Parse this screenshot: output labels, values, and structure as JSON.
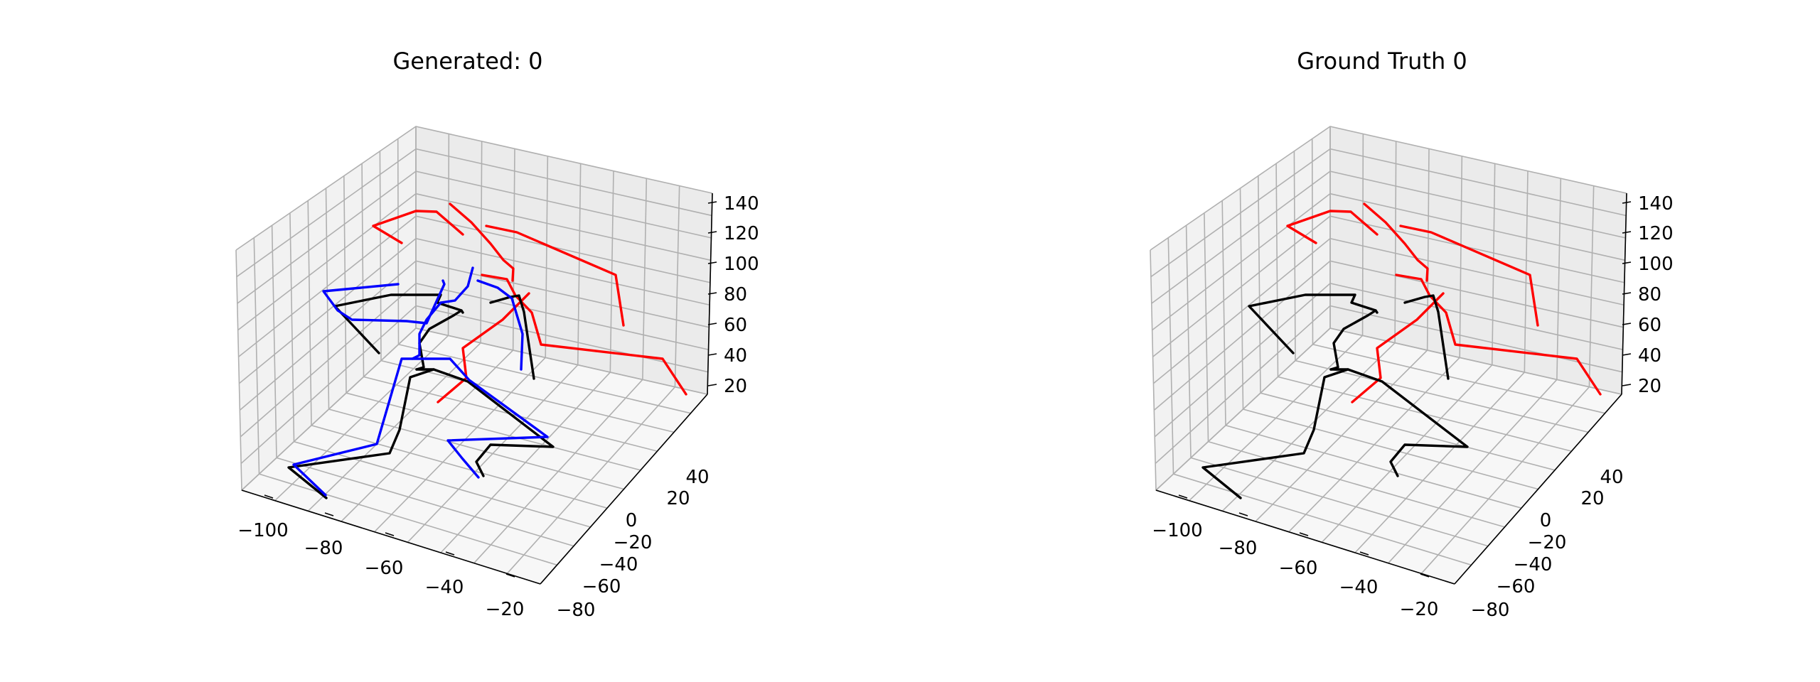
{
  "colors": {
    "red": "#ff0000",
    "black": "#000000",
    "blue": "#0000ff"
  },
  "chart_data": [
    {
      "type": "line3d",
      "title": "Generated: 0",
      "xticks": [
        "−100",
        "−80",
        "−60",
        "−40",
        "−20"
      ],
      "yticks": [
        "−80",
        "−60",
        "−40",
        "−20",
        "0",
        "20",
        "40"
      ],
      "zticks": [
        "20",
        "40",
        "60",
        "80",
        "100",
        "120",
        "140"
      ],
      "grid": true,
      "series": [
        {
          "color": "red",
          "segments": [
            {
              "points": [
                [
                  565,
                  342
                ],
                [
                  525,
                  318
                ],
                [
                  585,
                  297
                ],
                [
                  614,
                  298
                ],
                [
                  651,
                  330
                ]
              ]
            },
            {
              "points": [
                [
                  633,
                  287
                ],
                [
                  663,
                  313
                ],
                [
                  690,
                  343
                ],
                [
                  708,
                  366
                ],
                [
                  722,
                  378
                ],
                [
                  721,
                  395
                ]
              ]
            },
            {
              "points": [
                [
                  684,
                  318
                ],
                [
                  727,
                  327
                ],
                [
                  866,
                  387
                ],
                [
                  877,
                  458
                ]
              ]
            },
            {
              "points": [
                [
                  678,
                  387
                ],
                [
                  713,
                  393
                ],
                [
                  725,
                  416
                ],
                [
                  748,
                  440
                ],
                [
                  761,
                  485
                ],
                [
                  932,
                  505
                ],
                [
                  965,
                  555
                ]
              ]
            },
            {
              "points": [
                [
                  744,
                  413
                ],
                [
                  707,
                  450
                ],
                [
                  651,
                  490
                ],
                [
                  656,
                  532
                ],
                [
                  616,
                  566
                ]
              ]
            }
          ]
        },
        {
          "color": "black",
          "segments": [
            {
              "points": [
                [
                  533,
                  497
                ],
                [
                  471,
                  431
                ],
                [
                  550,
                  415
                ],
                [
                  620,
                  415
                ],
                [
                  615,
                  426
                ],
                [
                  649,
                  437
                ],
                [
                  651,
                  440
                ]
              ]
            },
            {
              "points": [
                [
                  649,
                  437
                ],
                [
                  638,
                  444
                ],
                [
                  604,
                  463
                ],
                [
                  590,
                  483
                ],
                [
                  596,
                  517
                ],
                [
                  586,
                  520
                ]
              ]
            },
            {
              "points": [
                [
                  690,
                  426
                ],
                [
                  718,
                  418
                ],
                [
                  730,
                  416
                ],
                [
                  737,
                  439
                ],
                [
                  751,
                  533
                ]
              ]
            },
            {
              "points": [
                [
                  586,
                  520
                ],
                [
                  610,
                  520
                ],
                [
                  658,
                  537
                ],
                [
                  778,
                  629
                ],
                [
                  690,
                  626
                ],
                [
                  670,
                  650
                ],
                [
                  680,
                  670
                ]
              ]
            },
            {
              "points": [
                [
                  610,
                  520
                ],
                [
                  577,
                  531
                ],
                [
                  562,
                  605
                ],
                [
                  548,
                  638
                ],
                [
                  406,
                  658
                ],
                [
                  459,
                  701
                ]
              ]
            }
          ]
        },
        {
          "color": "blue",
          "segments": [
            {
              "points": [
                [
                  665,
                  377
                ],
                [
                  658,
                  403
                ],
                [
                  640,
                  423
                ],
                [
                  620,
                  426
                ]
              ]
            },
            {
              "points": [
                [
                  620,
                  426
                ],
                [
                  600,
                  450
                ],
                [
                  590,
                  470
                ],
                [
                  590,
                  500
                ],
                [
                  580,
                  505
                ]
              ]
            },
            {
              "points": [
                [
                  672,
                  395
                ],
                [
                  700,
                  405
                ],
                [
                  720,
                  420
                ],
                [
                  735,
                  470
                ],
                [
                  733,
                  520
                ]
              ]
            },
            {
              "points": [
                [
                  560,
                  400
                ],
                [
                  455,
                  410
                ],
                [
                  475,
                  437
                ],
                [
                  495,
                  450
                ],
                [
                  572,
                  452
                ],
                [
                  600,
                  455
                ],
                [
                  625,
                  400
                ],
                [
                  623,
                  395
                ]
              ]
            },
            {
              "points": [
                [
                  595,
                  505
                ],
                [
                  633,
                  505
                ],
                [
                  660,
                  535
                ],
                [
                  770,
                  615
                ],
                [
                  630,
                  620
                ],
                [
                  650,
                  645
                ],
                [
                  673,
                  672
                ]
              ]
            },
            {
              "points": [
                [
                  595,
                  505
                ],
                [
                  565,
                  505
                ],
                [
                  530,
                  625
                ],
                [
                  413,
                  654
                ],
                [
                  458,
                  697
                ]
              ]
            }
          ]
        }
      ]
    },
    {
      "type": "line3d",
      "title": "Ground Truth 0",
      "xticks": [
        "−100",
        "−80",
        "−60",
        "−40",
        "−20"
      ],
      "yticks": [
        "−80",
        "−60",
        "−40",
        "−20",
        "0",
        "20",
        "40"
      ],
      "zticks": [
        "20",
        "40",
        "60",
        "80",
        "100",
        "120",
        "140"
      ],
      "grid": true,
      "series": [
        {
          "color": "red",
          "segments": [
            {
              "points": [
                [
                  565,
                  342
                ],
                [
                  525,
                  318
                ],
                [
                  585,
                  297
                ],
                [
                  614,
                  298
                ],
                [
                  651,
                  330
                ]
              ]
            },
            {
              "points": [
                [
                  633,
                  287
                ],
                [
                  663,
                  313
                ],
                [
                  690,
                  343
                ],
                [
                  708,
                  366
                ],
                [
                  722,
                  378
                ],
                [
                  721,
                  395
                ]
              ]
            },
            {
              "points": [
                [
                  684,
                  318
                ],
                [
                  727,
                  327
                ],
                [
                  866,
                  387
                ],
                [
                  877,
                  458
                ]
              ]
            },
            {
              "points": [
                [
                  678,
                  387
                ],
                [
                  713,
                  393
                ],
                [
                  725,
                  416
                ],
                [
                  748,
                  440
                ],
                [
                  761,
                  485
                ],
                [
                  932,
                  505
                ],
                [
                  965,
                  555
                ]
              ]
            },
            {
              "points": [
                [
                  744,
                  413
                ],
                [
                  707,
                  450
                ],
                [
                  651,
                  490
                ],
                [
                  656,
                  532
                ],
                [
                  616,
                  566
                ]
              ]
            }
          ]
        },
        {
          "color": "black",
          "segments": [
            {
              "points": [
                [
                  533,
                  497
                ],
                [
                  471,
                  431
                ],
                [
                  550,
                  415
                ],
                [
                  620,
                  415
                ],
                [
                  615,
                  426
                ],
                [
                  649,
                  437
                ],
                [
                  651,
                  440
                ]
              ]
            },
            {
              "points": [
                [
                  649,
                  437
                ],
                [
                  638,
                  444
                ],
                [
                  604,
                  463
                ],
                [
                  590,
                  483
                ],
                [
                  596,
                  517
                ],
                [
                  586,
                  520
                ]
              ]
            },
            {
              "points": [
                [
                  690,
                  426
                ],
                [
                  718,
                  418
                ],
                [
                  730,
                  416
                ],
                [
                  737,
                  439
                ],
                [
                  751,
                  533
                ]
              ]
            },
            {
              "points": [
                [
                  586,
                  520
                ],
                [
                  610,
                  520
                ],
                [
                  658,
                  537
                ],
                [
                  778,
                  629
                ],
                [
                  690,
                  626
                ],
                [
                  670,
                  650
                ],
                [
                  680,
                  670
                ]
              ]
            },
            {
              "points": [
                [
                  610,
                  520
                ],
                [
                  577,
                  531
                ],
                [
                  562,
                  605
                ],
                [
                  548,
                  638
                ],
                [
                  406,
                  658
                ],
                [
                  459,
                  701
                ]
              ]
            }
          ]
        }
      ]
    }
  ]
}
